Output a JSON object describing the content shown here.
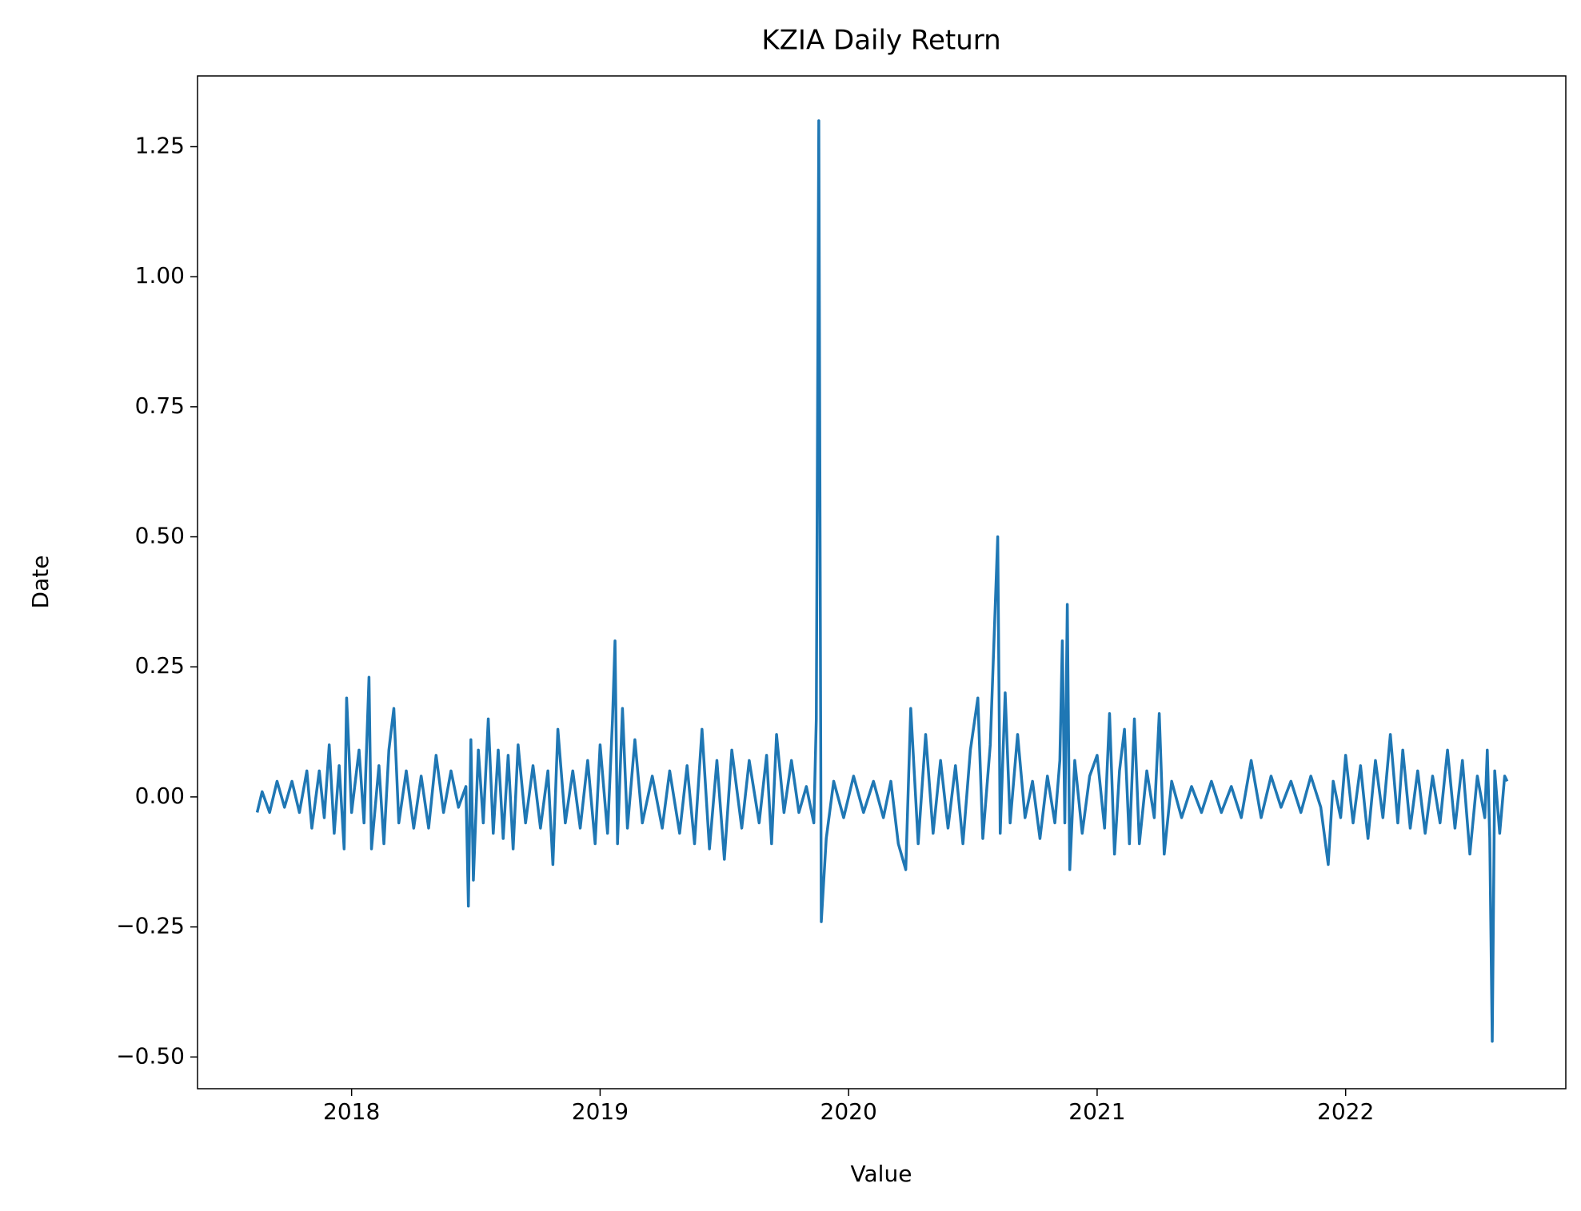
{
  "chart_data": {
    "type": "line",
    "title": "KZIA Daily Return",
    "x_label": "Value",
    "y_label": "Date",
    "color": "#1f77b4",
    "x": [
      2017.62,
      2017.64,
      2017.67,
      2017.7,
      2017.73,
      2017.76,
      2017.79,
      2017.82,
      2017.84,
      2017.87,
      2017.89,
      2017.91,
      2017.93,
      2017.95,
      2017.97,
      2017.98,
      2018.0,
      2018.03,
      2018.05,
      2018.07,
      2018.08,
      2018.11,
      2018.13,
      2018.15,
      2018.17,
      2018.19,
      2018.22,
      2018.25,
      2018.28,
      2018.31,
      2018.34,
      2018.37,
      2018.4,
      2018.43,
      2018.46,
      2018.47,
      2018.48,
      2018.49,
      2018.51,
      2018.53,
      2018.55,
      2018.57,
      2018.59,
      2018.61,
      2018.63,
      2018.65,
      2018.67,
      2018.7,
      2018.73,
      2018.76,
      2018.79,
      2018.81,
      2018.83,
      2018.86,
      2018.89,
      2018.92,
      2018.95,
      2018.98,
      2019.0,
      2019.03,
      2019.05,
      2019.06,
      2019.07,
      2019.09,
      2019.11,
      2019.14,
      2019.17,
      2019.21,
      2019.25,
      2019.28,
      2019.32,
      2019.35,
      2019.38,
      2019.41,
      2019.44,
      2019.47,
      2019.5,
      2019.53,
      2019.57,
      2019.6,
      2019.64,
      2019.67,
      2019.69,
      2019.71,
      2019.74,
      2019.77,
      2019.8,
      2019.83,
      2019.86,
      2019.87,
      2019.88,
      2019.89,
      2019.91,
      2019.94,
      2019.98,
      2020.02,
      2020.06,
      2020.1,
      2020.14,
      2020.17,
      2020.2,
      2020.23,
      2020.25,
      2020.28,
      2020.31,
      2020.34,
      2020.37,
      2020.4,
      2020.43,
      2020.46,
      2020.49,
      2020.52,
      2020.54,
      2020.57,
      2020.6,
      2020.61,
      2020.63,
      2020.65,
      2020.68,
      2020.71,
      2020.74,
      2020.77,
      2020.8,
      2020.83,
      2020.85,
      2020.86,
      2020.87,
      2020.88,
      2020.89,
      2020.91,
      2020.94,
      2020.97,
      2021.0,
      2021.03,
      2021.05,
      2021.07,
      2021.09,
      2021.11,
      2021.13,
      2021.15,
      2021.17,
      2021.2,
      2021.23,
      2021.25,
      2021.27,
      2021.3,
      2021.34,
      2021.38,
      2021.42,
      2021.46,
      2021.5,
      2021.54,
      2021.58,
      2021.62,
      2021.66,
      2021.7,
      2021.74,
      2021.78,
      2021.82,
      2021.86,
      2021.9,
      2021.93,
      2021.95,
      2021.98,
      2022.0,
      2022.03,
      2022.06,
      2022.09,
      2022.12,
      2022.15,
      2022.18,
      2022.21,
      2022.23,
      2022.26,
      2022.29,
      2022.32,
      2022.35,
      2022.38,
      2022.41,
      2022.44,
      2022.47,
      2022.5,
      2022.53,
      2022.56,
      2022.57,
      2022.58,
      2022.59,
      2022.6,
      2022.62,
      2022.64,
      2022.65
    ],
    "values": [
      -0.03,
      0.01,
      -0.03,
      0.03,
      -0.02,
      0.03,
      -0.03,
      0.05,
      -0.06,
      0.05,
      -0.04,
      0.1,
      -0.07,
      0.06,
      -0.1,
      0.19,
      -0.03,
      0.09,
      -0.05,
      0.23,
      -0.1,
      0.06,
      -0.09,
      0.09,
      0.17,
      -0.05,
      0.05,
      -0.06,
      0.04,
      -0.06,
      0.08,
      -0.03,
      0.05,
      -0.02,
      0.02,
      -0.21,
      0.11,
      -0.16,
      0.09,
      -0.05,
      0.15,
      -0.07,
      0.09,
      -0.08,
      0.08,
      -0.1,
      0.1,
      -0.05,
      0.06,
      -0.06,
      0.05,
      -0.13,
      0.13,
      -0.05,
      0.05,
      -0.06,
      0.07,
      -0.09,
      0.1,
      -0.07,
      0.15,
      0.3,
      -0.09,
      0.17,
      -0.06,
      0.11,
      -0.05,
      0.04,
      -0.06,
      0.05,
      -0.07,
      0.06,
      -0.09,
      0.13,
      -0.1,
      0.07,
      -0.12,
      0.09,
      -0.06,
      0.07,
      -0.05,
      0.08,
      -0.09,
      0.12,
      -0.03,
      0.07,
      -0.03,
      0.02,
      -0.05,
      0.15,
      1.3,
      -0.24,
      -0.08,
      0.03,
      -0.04,
      0.04,
      -0.03,
      0.03,
      -0.04,
      0.03,
      -0.09,
      -0.14,
      0.17,
      -0.09,
      0.12,
      -0.07,
      0.07,
      -0.06,
      0.06,
      -0.09,
      0.09,
      0.19,
      -0.08,
      0.1,
      0.5,
      -0.07,
      0.2,
      -0.05,
      0.12,
      -0.04,
      0.03,
      -0.08,
      0.04,
      -0.05,
      0.07,
      0.3,
      -0.05,
      0.37,
      -0.14,
      0.07,
      -0.07,
      0.04,
      0.08,
      -0.06,
      0.16,
      -0.11,
      0.05,
      0.13,
      -0.09,
      0.15,
      -0.09,
      0.05,
      -0.04,
      0.16,
      -0.11,
      0.03,
      -0.04,
      0.02,
      -0.03,
      0.03,
      -0.03,
      0.02,
      -0.04,
      0.07,
      -0.04,
      0.04,
      -0.02,
      0.03,
      -0.03,
      0.04,
      -0.02,
      -0.13,
      0.03,
      -0.04,
      0.08,
      -0.05,
      0.06,
      -0.08,
      0.07,
      -0.04,
      0.12,
      -0.05,
      0.09,
      -0.06,
      0.05,
      -0.07,
      0.04,
      -0.05,
      0.09,
      -0.06,
      0.07,
      -0.11,
      0.04,
      -0.04,
      0.09,
      -0.08,
      -0.47,
      0.05,
      -0.07,
      0.04,
      0.03
    ],
    "xlim": [
      2017.38,
      2022.886
    ],
    "xticks": [
      2018,
      2019,
      2020,
      2021,
      2022
    ],
    "ylim": [
      -0.561,
      1.386
    ],
    "yticks": [
      {
        "value": -0.5,
        "label": "−0.50"
      },
      {
        "value": -0.25,
        "label": "−0.25"
      },
      {
        "value": 0,
        "label": "0.00"
      },
      {
        "value": 0.25,
        "label": "0.25"
      },
      {
        "value": 0.5,
        "label": "0.50"
      },
      {
        "value": 0.75,
        "label": "0.75"
      },
      {
        "value": 1,
        "label": "1.00"
      },
      {
        "value": 1.25,
        "label": "1.25"
      }
    ],
    "grid": false
  }
}
